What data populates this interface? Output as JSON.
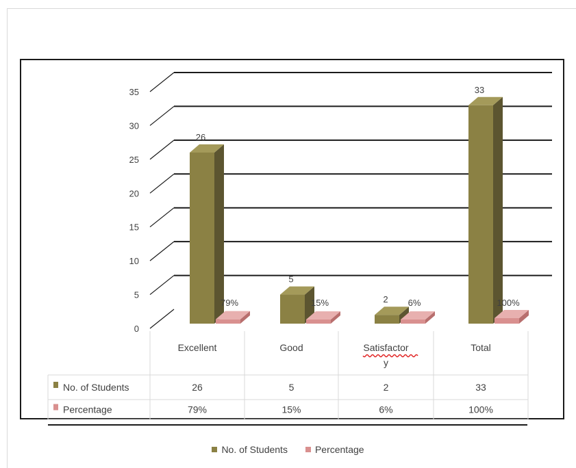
{
  "chart_data": {
    "type": "bar",
    "categories": [
      "Excellent",
      "Good",
      "Satisfactory",
      "Total"
    ],
    "category_labels_wrapped": [
      [
        "Excellent"
      ],
      [
        "Good"
      ],
      [
        "Satisfactor",
        "y"
      ],
      [
        "Total"
      ]
    ],
    "series": [
      {
        "name": "No. of Students",
        "values": [
          26,
          5,
          2,
          33
        ],
        "labels": [
          "26",
          "5",
          "2",
          "33"
        ],
        "color": "#8b8144"
      },
      {
        "name": "Percentage",
        "values": [
          0.79,
          0.15,
          0.06,
          1.0
        ],
        "labels": [
          "79%",
          "15%",
          "6%",
          "100%"
        ],
        "color": "#d9908f"
      }
    ],
    "ylim": [
      0,
      35
    ],
    "yticks": [
      0,
      5,
      10,
      15,
      20,
      25,
      30,
      35
    ],
    "ytick_labels": [
      "0",
      "5",
      "10",
      "15",
      "20",
      "25",
      "30",
      "35"
    ],
    "grid": true,
    "style": "3d-column",
    "data_table": {
      "rows": [
        {
          "label": "No. of Students",
          "values": [
            "26",
            "5",
            "2",
            "33"
          ]
        },
        {
          "label": "Percentage",
          "values": [
            "79%",
            "15%",
            "6%",
            "100%"
          ]
        }
      ]
    },
    "legend": {
      "position": "bottom",
      "items": [
        "No. of Students",
        "Percentage"
      ]
    }
  },
  "colors": {
    "students_front": "#8b8144",
    "students_side": "#5c5530",
    "students_top": "#a49a5a",
    "percent_front": "#d9908f",
    "percent_side": "#b86f6e",
    "percent_top": "#e8b0af",
    "grid": "#1a1a1a",
    "table_border": "#d9d9d9",
    "text": "#404040"
  }
}
